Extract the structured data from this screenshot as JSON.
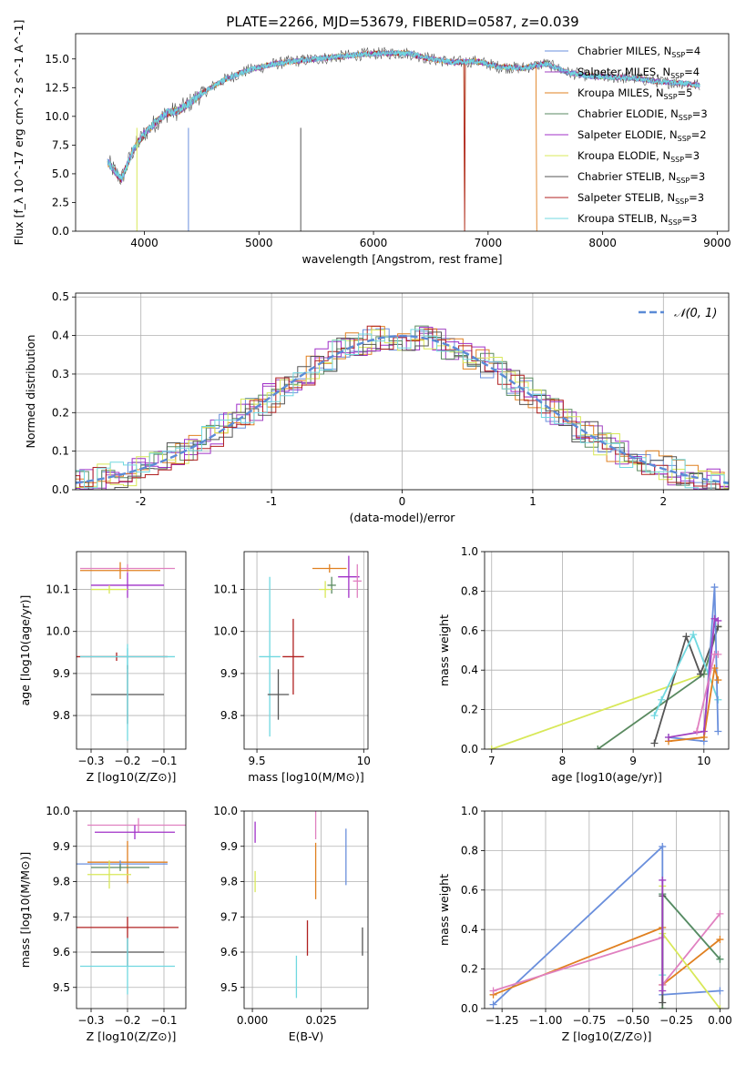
{
  "figure": {
    "title": "PLATE=2266, MJD=53679, FIBERID=0587, z=0.039"
  },
  "legend_colors": {
    "chabrier_miles": "#6a8fdc",
    "salpeter_miles": "#a040c0",
    "kroupa_miles": "#e08020",
    "chabrier_elodie": "#5a8a60",
    "salpeter_elodie": "#a030c8",
    "kroupa_elodie": "#d8e858",
    "chabrier_stelib": "#555555",
    "salpeter_stelib": "#b02020",
    "kroupa_stelib": "#70d8e0"
  },
  "chart_data": [
    {
      "id": "spectrum",
      "type": "line",
      "title": "PLATE=2266, MJD=53679, FIBERID=0587, z=0.039",
      "xlabel": "wavelength [Angstrom, rest frame]",
      "ylabel": "Flux [f_λ 10^-17 erg cm^-2 s^-1 A^-1]",
      "xlim": [
        3400,
        9100
      ],
      "ylim": [
        0,
        17.2
      ],
      "xticks": [
        4000,
        5000,
        6000,
        7000,
        8000,
        9000
      ],
      "yticks": [
        0.0,
        2.5,
        5.0,
        7.5,
        10.0,
        12.5,
        15.0
      ],
      "grid": false,
      "legend_position": "top-right",
      "x": [
        3680,
        3800,
        3900,
        4000,
        4100,
        4200,
        4300,
        4400,
        4500,
        4700,
        4900,
        5100,
        5300,
        5500,
        5700,
        5900,
        6100,
        6300,
        6500,
        6700,
        6900,
        7100,
        7300,
        7500,
        7700,
        7900,
        8100,
        8300,
        8500,
        8700,
        8850
      ],
      "series": [
        {
          "name": "Chabrier MILES, N_SSP=4",
          "color": "#6a8fdc",
          "values": [
            6.0,
            4.5,
            7.0,
            8.5,
            9.5,
            10.3,
            10.5,
            11.2,
            12.0,
            13.2,
            14.0,
            14.5,
            14.8,
            15.0,
            15.2,
            15.4,
            15.5,
            15.5,
            15.0,
            14.7,
            14.8,
            14.3,
            14.2,
            14.6,
            13.8,
            13.5,
            13.4,
            13.3,
            13.0,
            12.9,
            12.7
          ]
        },
        {
          "name": "Salpeter MILES, N_SSP=4",
          "color": "#a040c0"
        },
        {
          "name": "Kroupa MILES, N_SSP=5",
          "color": "#e08020"
        },
        {
          "name": "Chabrier ELODIE, N_SSP=3",
          "color": "#5a8a60"
        },
        {
          "name": "Salpeter ELODIE, N_SSP=2",
          "color": "#a030c8"
        },
        {
          "name": "Kroupa ELODIE, N_SSP=3",
          "color": "#d8e858"
        },
        {
          "name": "Chabrier STELIB, N_SSP=3",
          "color": "#555555"
        },
        {
          "name": "Salpeter STELIB, N_SSP=3",
          "color": "#b02020"
        },
        {
          "name": "Kroupa STELIB, N_SSP=3",
          "color": "#70d8e0"
        }
      ]
    },
    {
      "id": "residuals",
      "type": "line",
      "xlabel": "(data-model)/error",
      "ylabel": "Normed distribution",
      "xlim": [
        -2.5,
        2.5
      ],
      "ylim": [
        0,
        0.51
      ],
      "xticks": [
        -2,
        -1,
        0,
        1,
        2
      ],
      "yticks": [
        0.0,
        0.1,
        0.2,
        0.3,
        0.4,
        0.5
      ],
      "grid": true,
      "legend_position": "top-right",
      "legend_label": "𝒩(0, 1)",
      "bin_centers": [
        -2.4,
        -2.2,
        -2.0,
        -1.8,
        -1.6,
        -1.4,
        -1.2,
        -1.0,
        -0.8,
        -0.6,
        -0.4,
        -0.2,
        0.0,
        0.2,
        0.4,
        0.6,
        0.8,
        1.0,
        1.2,
        1.4,
        1.6,
        1.8,
        2.0,
        2.2,
        2.4
      ],
      "hist_values": [
        0.02,
        0.04,
        0.06,
        0.09,
        0.12,
        0.16,
        0.21,
        0.26,
        0.31,
        0.35,
        0.38,
        0.4,
        0.4,
        0.41,
        0.38,
        0.35,
        0.31,
        0.26,
        0.21,
        0.16,
        0.12,
        0.08,
        0.06,
        0.04,
        0.02
      ]
    },
    {
      "id": "age_vs_z",
      "type": "scatter",
      "xlabel": "Z [log10(Z/Z⊙)]",
      "ylabel": "age [log10(age/yr)]",
      "xlim": [
        -0.34,
        -0.04
      ],
      "ylim": [
        9.72,
        10.19
      ],
      "xticks": [
        -0.3,
        -0.2,
        -0.1
      ],
      "yticks": [
        9.8,
        9.9,
        10.0,
        10.1
      ],
      "grid": true,
      "points": [
        {
          "x": -0.2,
          "y": 10.15,
          "color": "#e080c0",
          "xerr": 0.13,
          "yerr": 0.01
        },
        {
          "x": -0.22,
          "y": 10.145,
          "color": "#e08020",
          "xerr": 0.11,
          "yerr": 0.02
        },
        {
          "x": -0.2,
          "y": 10.11,
          "color": "#a030c8",
          "xerr": 0.1,
          "yerr": 0.03
        },
        {
          "x": -0.25,
          "y": 10.1,
          "color": "#d8e858",
          "xerr": 0.05,
          "yerr": 0.01
        },
        {
          "x": -0.23,
          "y": 9.94,
          "color": "#b02020",
          "xerr": 0.14,
          "yerr": 0.01
        },
        {
          "x": -0.2,
          "y": 9.94,
          "color": "#70d8e0",
          "xerr": 0.13,
          "yerr": 0.03
        },
        {
          "x": -0.2,
          "y": 9.85,
          "color": "#555555",
          "xerr": 0.1,
          "yerr": 0.07
        },
        {
          "x": -0.2,
          "y": 9.85,
          "color": "#70d8e0",
          "xerr": 0.0,
          "yerr": 0.11
        }
      ]
    },
    {
      "id": "age_vs_mass",
      "type": "scatter",
      "xlabel": "mass [log10(M/M⊙)]",
      "ylabel": "",
      "xlim": [
        9.44,
        10.02
      ],
      "ylim": [
        9.72,
        10.19
      ],
      "xticks": [
        9.5,
        10.0
      ],
      "yticks": [
        9.8,
        9.9,
        10.0,
        10.1
      ],
      "grid": true,
      "points": [
        {
          "x": 9.84,
          "y": 10.15,
          "color": "#e08020",
          "xerr": 0.08,
          "yerr": 0.01
        },
        {
          "x": 9.93,
          "y": 10.13,
          "color": "#a030c8",
          "xerr": 0.05,
          "yerr": 0.05
        },
        {
          "x": 9.97,
          "y": 10.12,
          "color": "#e080c0",
          "xerr": 0.02,
          "yerr": 0.04
        },
        {
          "x": 9.85,
          "y": 10.11,
          "color": "#5a8a60",
          "xerr": 0.02,
          "yerr": 0.02
        },
        {
          "x": 9.82,
          "y": 10.1,
          "color": "#d8e858",
          "xerr": 0.03,
          "yerr": 0.02
        },
        {
          "x": 9.67,
          "y": 9.94,
          "color": "#b02020",
          "xerr": 0.05,
          "yerr": 0.09
        },
        {
          "x": 9.56,
          "y": 9.94,
          "color": "#70d8e0",
          "xerr": 0.05,
          "yerr": 0.19
        },
        {
          "x": 9.6,
          "y": 9.85,
          "color": "#555555",
          "xerr": 0.05,
          "yerr": 0.06
        }
      ]
    },
    {
      "id": "massweight_vs_age",
      "type": "line",
      "xlabel": "age [log10(age/yr)]",
      "ylabel": "mass weight",
      "xlim": [
        6.9,
        10.35
      ],
      "ylim": [
        0,
        1.0
      ],
      "xticks": [
        7,
        8,
        9,
        10
      ],
      "yticks": [
        0.0,
        0.2,
        0.4,
        0.6,
        0.8,
        1.0
      ],
      "grid": true,
      "series": [
        {
          "name": "Kroupa ELODIE",
          "color": "#d8e858",
          "x": [
            7.0,
            10.0,
            10.2
          ],
          "values": [
            0.0,
            0.38,
            0.62
          ]
        },
        {
          "name": "Chabrier ELODIE",
          "color": "#5a8a60",
          "x": [
            8.5,
            10.0,
            10.2
          ],
          "values": [
            0.0,
            0.38,
            0.62
          ]
        },
        {
          "name": "Chabrier STELIB",
          "color": "#555555",
          "x": [
            9.3,
            9.75,
            9.95,
            10.2
          ],
          "values": [
            0.03,
            0.57,
            0.38,
            0.62
          ]
        },
        {
          "name": "Kroupa STELIB",
          "color": "#70d8e0",
          "x": [
            9.3,
            9.4,
            9.85,
            10.2
          ],
          "values": [
            0.17,
            0.25,
            0.58,
            0.25
          ]
        },
        {
          "name": "Chabrier MILES",
          "color": "#6a8fdc",
          "x": [
            9.5,
            10.0,
            10.15,
            10.2
          ],
          "values": [
            0.06,
            0.04,
            0.82,
            0.09
          ]
        },
        {
          "name": "Kroupa MILES",
          "color": "#e08020",
          "x": [
            9.5,
            10.0,
            10.15,
            10.2
          ],
          "values": [
            0.04,
            0.06,
            0.41,
            0.35
          ]
        },
        {
          "name": "Salpeter MILES",
          "color": "#a040c0",
          "x": [
            9.5,
            10.0,
            10.15,
            10.2
          ],
          "values": [
            0.06,
            0.09,
            0.66,
            0.65
          ]
        },
        {
          "name": "Salpeter STELIB",
          "color": "#e080c0",
          "x": [
            9.9,
            10.15,
            10.2
          ],
          "values": [
            0.09,
            0.48,
            0.48
          ]
        }
      ]
    },
    {
      "id": "mass_vs_z",
      "type": "scatter",
      "xlabel": "Z [log10(Z/Z⊙)]",
      "ylabel": "mass [log10(M/M⊙)]",
      "xlim": [
        -0.34,
        -0.04
      ],
      "ylim": [
        9.44,
        10.0
      ],
      "xticks": [
        -0.3,
        -0.2,
        -0.1
      ],
      "yticks": [
        9.5,
        9.6,
        9.7,
        9.8,
        9.9,
        10.0
      ],
      "grid": true,
      "points": [
        {
          "x": -0.17,
          "y": 9.96,
          "color": "#e080c0",
          "xerr": 0.14,
          "yerr": 0.02
        },
        {
          "x": -0.18,
          "y": 9.94,
          "color": "#a030c8",
          "xerr": 0.11,
          "yerr": 0.02
        },
        {
          "x": -0.2,
          "y": 9.855,
          "color": "#e08020",
          "xerr": 0.11,
          "yerr": 0.06
        },
        {
          "x": -0.22,
          "y": 9.85,
          "color": "#6a8fdc",
          "xerr": 0.13,
          "yerr": 0.01
        },
        {
          "x": -0.22,
          "y": 9.84,
          "color": "#5a8a60",
          "xerr": 0.08,
          "yerr": 0.01
        },
        {
          "x": -0.25,
          "y": 9.82,
          "color": "#d8e858",
          "xerr": 0.06,
          "yerr": 0.04
        },
        {
          "x": -0.2,
          "y": 9.67,
          "color": "#b02020",
          "xerr": 0.14,
          "yerr": 0.03
        },
        {
          "x": -0.2,
          "y": 9.6,
          "color": "#555555",
          "xerr": 0.1,
          "yerr": 0.04
        },
        {
          "x": -0.2,
          "y": 9.56,
          "color": "#70d8e0",
          "xerr": 0.13,
          "yerr": 0.08
        }
      ]
    },
    {
      "id": "mass_vs_ebv",
      "type": "scatter",
      "xlabel": "E(B-V)",
      "ylabel": "",
      "xlim": [
        -0.003,
        0.042
      ],
      "ylim": [
        9.44,
        10.0
      ],
      "xticks": [
        0.0,
        0.025
      ],
      "yticks": [
        9.5,
        9.6,
        9.7,
        9.8,
        9.9,
        10.0
      ],
      "xticklabels": [
        "0.000",
        "0.025"
      ],
      "grid": true,
      "points": [
        {
          "x": 0.001,
          "y": 9.94,
          "color": "#a030c8",
          "xerr": 0.0,
          "yerr": 0.03
        },
        {
          "x": 0.001,
          "y": 9.8,
          "color": "#d8e858",
          "xerr": 0.0,
          "yerr": 0.03
        },
        {
          "x": 0.023,
          "y": 9.96,
          "color": "#e080c0",
          "xerr": 0.0,
          "yerr": 0.04
        },
        {
          "x": 0.023,
          "y": 9.83,
          "color": "#e08020",
          "xerr": 0.0,
          "yerr": 0.08
        },
        {
          "x": 0.034,
          "y": 9.87,
          "color": "#6a8fdc",
          "xerr": 0.0,
          "yerr": 0.08
        },
        {
          "x": 0.02,
          "y": 9.64,
          "color": "#b02020",
          "xerr": 0.0,
          "yerr": 0.05
        },
        {
          "x": 0.04,
          "y": 9.63,
          "color": "#555555",
          "xerr": 0.0,
          "yerr": 0.04
        },
        {
          "x": 0.016,
          "y": 9.53,
          "color": "#70d8e0",
          "xerr": 0.0,
          "yerr": 0.06
        }
      ]
    },
    {
      "id": "massweight_vs_z",
      "type": "line",
      "xlabel": "Z [log10(Z/Z⊙)]",
      "ylabel": "mass weight",
      "xlim": [
        -1.35,
        0.05
      ],
      "ylim": [
        0,
        1.0
      ],
      "xticks": [
        -1.25,
        -1.0,
        -0.75,
        -0.5,
        -0.25,
        0.0
      ],
      "xticklabels": [
        "−1.25",
        "−1.00",
        "−0.75",
        "−0.50",
        "−0.25",
        "0.00"
      ],
      "yticks": [
        0.0,
        0.2,
        0.4,
        0.6,
        0.8,
        1.0
      ],
      "grid": true,
      "series": [
        {
          "name": "Chabrier MILES",
          "color": "#6a8fdc",
          "x": [
            -1.3,
            -0.33,
            -0.33,
            0.0
          ],
          "values": [
            0.02,
            0.82,
            0.07,
            0.09
          ]
        },
        {
          "name": "Kroupa MILES",
          "color": "#e08020",
          "x": [
            -1.3,
            -0.33,
            -0.33,
            0.0
          ],
          "values": [
            0.07,
            0.41,
            0.12,
            0.35
          ]
        },
        {
          "name": "Salpeter STELIB",
          "color": "#e080c0",
          "x": [
            -1.3,
            -0.33,
            -0.33,
            0.0
          ],
          "values": [
            0.09,
            0.36,
            0.12,
            0.48
          ]
        },
        {
          "name": "Kroupa ELODIE",
          "color": "#d8e858",
          "x": [
            -0.33,
            -0.33,
            0.0
          ],
          "values": [
            0.62,
            0.38,
            0.0
          ]
        },
        {
          "name": "Kroupa STELIB",
          "color": "#70d8e0",
          "x": [
            -0.33,
            -0.33,
            0.0
          ],
          "values": [
            0.17,
            0.58,
            0.25
          ]
        },
        {
          "name": "Chabrier ELODIE",
          "color": "#5a8a60",
          "x": [
            -0.33,
            -0.33,
            0.0
          ],
          "values": [
            0.0,
            0.58,
            0.25
          ]
        },
        {
          "name": "Chabrier STELIB",
          "color": "#555555",
          "x": [
            -0.33,
            -0.33
          ],
          "values": [
            0.03,
            0.57
          ]
        },
        {
          "name": "Salpeter MILES",
          "color": "#a040c0",
          "x": [
            -0.33,
            -0.33
          ],
          "values": [
            0.09,
            0.65
          ]
        }
      ]
    }
  ]
}
